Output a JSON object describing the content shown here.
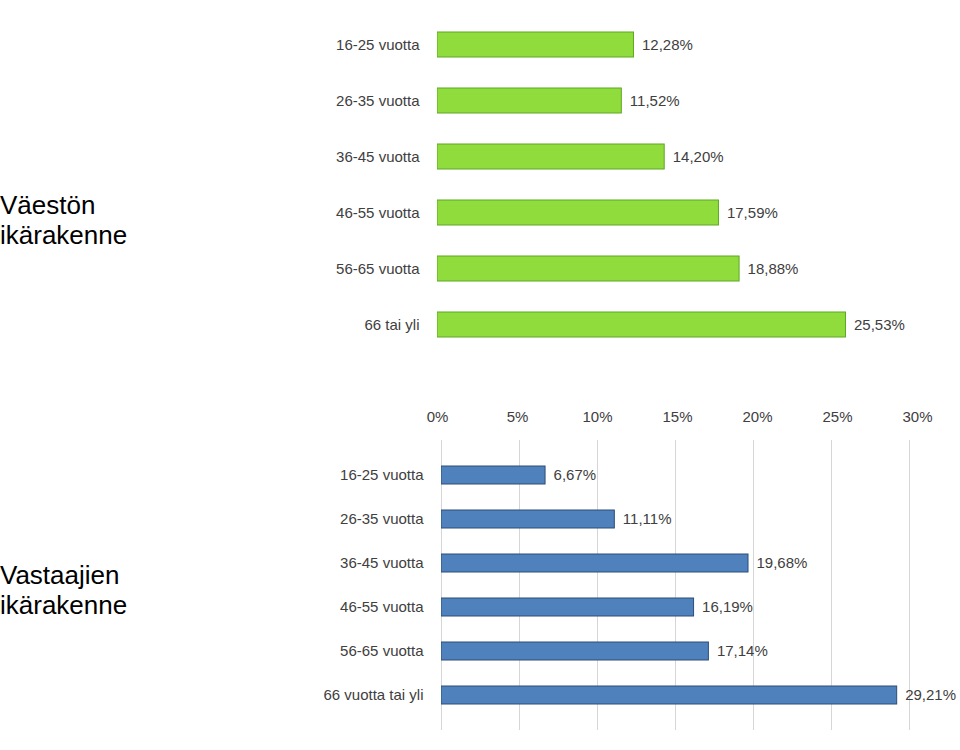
{
  "chart_data": [
    {
      "type": "bar",
      "title": "Väestön ikärakenne",
      "orientation": "horizontal",
      "categories": [
        "16-25 vuotta",
        "26-35 vuotta",
        "36-45 vuotta",
        "46-55 vuotta",
        "56-65 vuotta",
        "66 tai yli"
      ],
      "values": [
        12.28,
        11.52,
        14.2,
        17.59,
        18.88,
        25.53
      ],
      "value_labels": [
        "12,28%",
        "11,52%",
        "14,20%",
        "17,59%",
        "18,88%",
        "25,53%"
      ],
      "color": "#8fdc3c",
      "xlim": [
        0,
        30
      ],
      "xticks": [
        {
          "value": 0,
          "label": "0%"
        },
        {
          "value": 5,
          "label": "5%"
        },
        {
          "value": 10,
          "label": "10%"
        },
        {
          "value": 15,
          "label": "15%"
        },
        {
          "value": 20,
          "label": "20%"
        },
        {
          "value": 25,
          "label": "25%"
        },
        {
          "value": 30,
          "label": "30%"
        }
      ],
      "grid": false,
      "data_labels": true,
      "tick_labels": true
    },
    {
      "type": "bar",
      "title": "Vastaajien ikärakenne",
      "orientation": "horizontal",
      "categories": [
        "16-25 vuotta",
        "26-35 vuotta",
        "36-45 vuotta",
        "46-55 vuotta",
        "56-65 vuotta",
        "66 vuotta tai yli"
      ],
      "values": [
        6.67,
        11.11,
        19.68,
        16.19,
        17.14,
        29.21
      ],
      "value_labels": [
        "6,67%",
        "11,11%",
        "19,68%",
        "16,19%",
        "17,14%",
        "29,21%"
      ],
      "color": "#4f81bd",
      "xlim": [
        0,
        30
      ],
      "xticks": [
        {
          "value": 0,
          "label": "0%"
        },
        {
          "value": 5,
          "label": "5%"
        },
        {
          "value": 10,
          "label": "10%"
        },
        {
          "value": 15,
          "label": "15%"
        },
        {
          "value": 20,
          "label": "20%"
        },
        {
          "value": 25,
          "label": "25%"
        },
        {
          "value": 30,
          "label": "30%"
        }
      ],
      "grid": true,
      "data_labels": true,
      "tick_labels": "y"
    }
  ]
}
